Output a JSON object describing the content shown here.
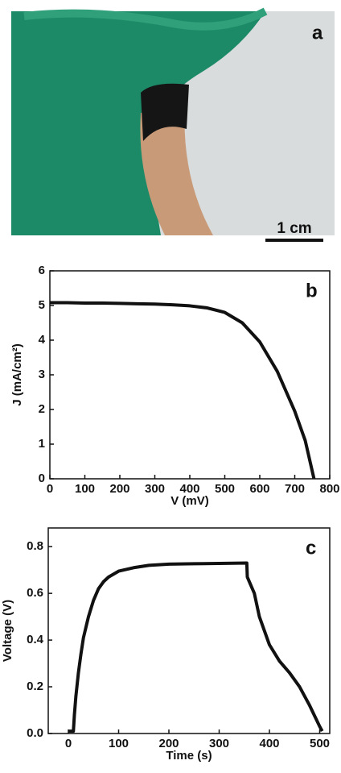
{
  "photo": {
    "label": "a",
    "scale_bar": "1 cm"
  },
  "chart_data": [
    {
      "type": "line",
      "panel_label": "b",
      "xlabel": "V (mV)",
      "ylabel": "J (mA/cm²)",
      "x": [
        0,
        50,
        100,
        150,
        200,
        250,
        300,
        350,
        400,
        450,
        500,
        550,
        600,
        650,
        700,
        730,
        755
      ],
      "values": [
        5.08,
        5.08,
        5.07,
        5.07,
        5.06,
        5.05,
        5.04,
        5.02,
        4.99,
        4.93,
        4.8,
        4.5,
        3.95,
        3.1,
        1.95,
        1.1,
        0
      ],
      "color": "#111111",
      "xlim": [
        0,
        800
      ],
      "xticks": [
        0,
        100,
        200,
        300,
        400,
        500,
        600,
        700,
        800
      ],
      "ylim": [
        0,
        6
      ],
      "yticks": [
        0,
        1,
        2,
        3,
        4,
        5,
        6
      ]
    },
    {
      "type": "line",
      "panel_label": "c",
      "xlabel": "Time (s)",
      "ylabel": "Voltage (V)",
      "x": [
        0,
        5,
        10,
        12,
        15,
        20,
        25,
        30,
        40,
        50,
        60,
        70,
        80,
        100,
        130,
        160,
        200,
        250,
        300,
        355,
        356,
        360,
        370,
        380,
        400,
        420,
        440,
        460,
        480,
        500,
        505
      ],
      "values": [
        0.01,
        0.01,
        0.01,
        0.08,
        0.16,
        0.26,
        0.34,
        0.41,
        0.5,
        0.57,
        0.62,
        0.65,
        0.67,
        0.695,
        0.71,
        0.72,
        0.725,
        0.727,
        0.728,
        0.73,
        0.67,
        0.65,
        0.6,
        0.5,
        0.38,
        0.31,
        0.26,
        0.2,
        0.12,
        0.03,
        0.01
      ],
      "color": "#111111",
      "xlim": [
        -40,
        520
      ],
      "xticks": [
        0,
        100,
        200,
        300,
        400,
        500
      ],
      "ylim": [
        0,
        0.88
      ],
      "yticks": [
        {
          "value": 0,
          "label": "0.0"
        },
        0.2,
        0.4,
        0.6,
        0.8
      ]
    }
  ]
}
